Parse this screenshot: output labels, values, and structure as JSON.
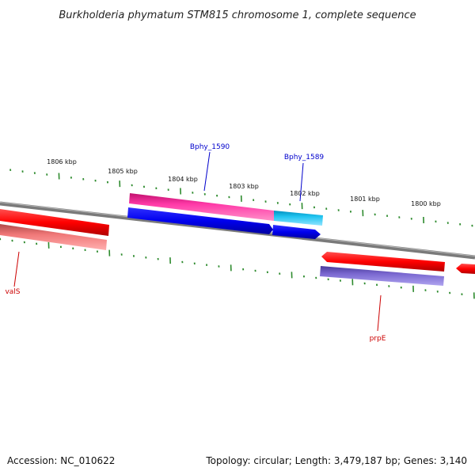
{
  "title": "Burkholderia phymatum STM815 chromosome 1, complete sequence",
  "ticks": [
    {
      "label": "1806 kbp"
    },
    {
      "label": "1805 kbp"
    },
    {
      "label": "1804 kbp"
    },
    {
      "label": "1803 kbp"
    },
    {
      "label": "1802 kbp"
    },
    {
      "label": "1801 kbp"
    },
    {
      "label": "1800 kbp"
    }
  ],
  "genes": {
    "bphy1590": "Bphy_1590",
    "bphy1589": "Bphy_1589",
    "vals": "valS",
    "prpe": "prpE"
  },
  "footer": {
    "accession": "Accession: NC_010622",
    "summary": "Topology: circular; Length: 3,479,187 bp; Genes: 3,140"
  },
  "colors": {
    "backbone": "#808080",
    "tick": "#2e8b2e",
    "gene_red": "#ff0000",
    "gene_pink": "#e8268c",
    "gene_blue": "#0000ee",
    "gene_cyan": "#1cb4e0",
    "gene_salmon": "#e87070",
    "gene_purple": "#7060c8"
  }
}
